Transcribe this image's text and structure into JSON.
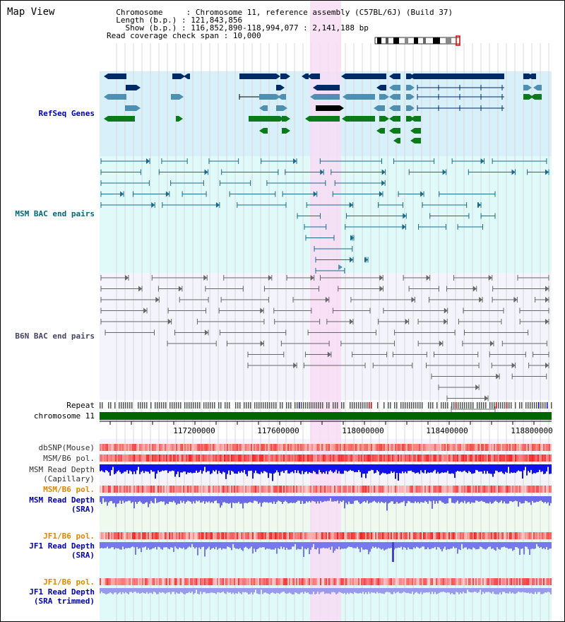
{
  "title": "Map View",
  "header": {
    "chromosome_label": "Chromosome",
    "chromosome_value": "Chromosome 11, reference assembly (C57BL/6J) (Build 37)",
    "length_label": "Length (b.p.)",
    "length_value": "121,843,856",
    "show_label": "Show (b.p.)",
    "show_value": "116,852,890-118,994,077 : 2,141,188 bp",
    "coverage_label": "Read coverage check span",
    "coverage_value": "10,000"
  },
  "tracks": {
    "refseq": "RefSeq Genes",
    "msm_bac": "MSM BAC end pairs",
    "b6n_bac": "B6N BAC end pairs",
    "repeat": "Repeat",
    "chromosome": "chromosome 11",
    "dbsnp": "dbSNP(Mouse)",
    "msm_b6_pol_1": "MSM/B6 pol.",
    "msm_read_depth_cap_1": "MSM Read Depth",
    "msm_read_depth_cap_2": "(Capillary)",
    "msm_b6_pol_2": "MSM/B6 pol.",
    "msm_read_depth_sra_1": "MSM Read Depth",
    "msm_read_depth_sra_2": "(SRA)",
    "jf1_b6_pol_1": "JF1/B6 pol.",
    "jf1_read_depth_1": "JF1 Read Depth",
    "jf1_read_depth_2": "(SRA)",
    "jf1_b6_pol_2": "JF1/B6 pol.",
    "jf1_read_depth_trim_1": "JF1 Read Depth",
    "jf1_read_depth_trim_2": "(SRA trimmed)"
  },
  "axis": {
    "ticks": [
      "117200000",
      "117600000",
      "118000000",
      "118400000",
      "118800000"
    ]
  },
  "colors": {
    "refseq_bg": "#d8f0fa",
    "msm_bg": "#e0fafa",
    "b6n_bg": "#f4f4fc",
    "highlight": "#f8dcf4",
    "chromosome": "#006600",
    "navy": "#002a66",
    "blue": "#4f8fb0",
    "green": "#0a7a1a",
    "label_blue": "#0000aa",
    "label_teal": "#006677",
    "label_orange": "#dd8800"
  }
}
